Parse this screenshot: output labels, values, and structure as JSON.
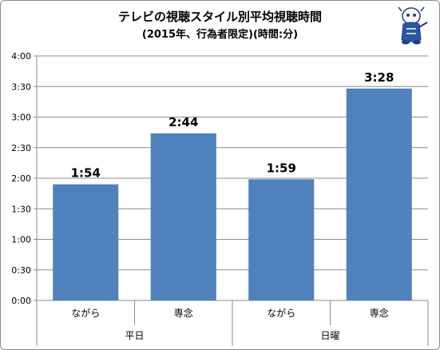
{
  "chart_data": {
    "type": "bar",
    "title": "テレビの視聴スタイル別平均視聴時間",
    "subtitle": "(2015年、行為者限定)(時間:分)",
    "categories": [
      "ながら",
      "専念",
      "ながら",
      "専念"
    ],
    "groups": [
      {
        "label": "平日",
        "categories": [
          "ながら",
          "専念"
        ]
      },
      {
        "label": "日曜",
        "categories": [
          "ながら",
          "専念"
        ]
      }
    ],
    "values_minutes": [
      114,
      164,
      119,
      208
    ],
    "data_labels": [
      "1:54",
      "2:44",
      "1:59",
      "3:28"
    ],
    "y_ticks": [
      "0:00",
      "0:30",
      "1:00",
      "1:30",
      "2:00",
      "2:30",
      "3:00",
      "3:30",
      "4:00"
    ],
    "ylim_minutes": [
      0,
      240
    ],
    "grid": true,
    "bar_color": "#4f81bd"
  },
  "decor": {
    "mascot": "mascot-illustration"
  }
}
